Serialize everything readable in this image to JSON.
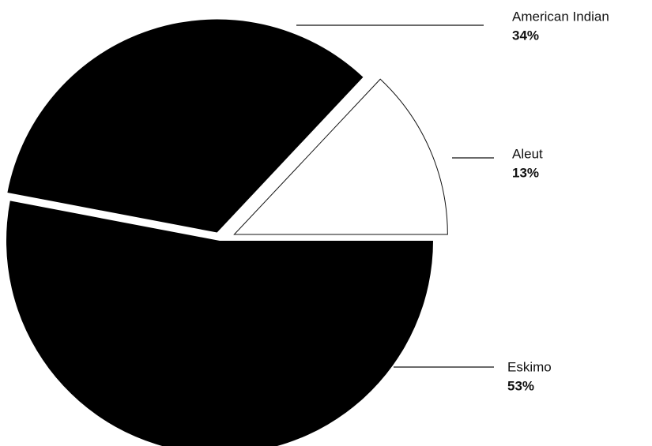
{
  "chart_data": {
    "type": "pie",
    "categories": [
      "Aleut",
      "American Indian",
      "Eskimo"
    ],
    "values": [
      13,
      34,
      53
    ],
    "value_labels": [
      "13%",
      "34%",
      "53%"
    ],
    "colors": [
      "#ffffff",
      "#000000",
      "#000000"
    ]
  }
}
